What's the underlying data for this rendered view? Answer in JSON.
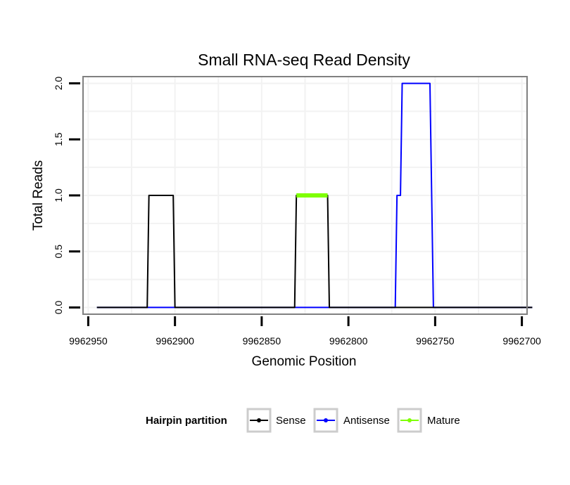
{
  "chart_data": {
    "type": "line",
    "title": "Small RNA-seq Read Density",
    "xlabel": "Genomic Position",
    "ylabel": "Total Reads",
    "xlim": [
      9962953,
      9962697
    ],
    "ylim": [
      -0.06,
      2.06
    ],
    "x_reversed": true,
    "x_ticks": [
      9962950,
      9962900,
      9962850,
      9962800,
      9962750,
      9962700
    ],
    "x_tick_labels": [
      "9962950",
      "9962900",
      "9962850",
      "9962800",
      "9962750",
      "9962700"
    ],
    "y_ticks": [
      0.0,
      0.5,
      1.0,
      1.5,
      2.0
    ],
    "y_tick_labels": [
      "0.0",
      "0.5",
      "1.0",
      "1.5",
      "2.0"
    ],
    "grid": true,
    "legend_title": "Hairpin partition",
    "legend_position": "bottom",
    "series": [
      {
        "name": "Sense",
        "color": "#000000",
        "x": [
          9962945,
          9962916,
          9962915,
          9962901,
          9962900,
          9962831,
          9962830,
          9962812,
          9962811,
          9962694
        ],
        "y": [
          0,
          0,
          1,
          1,
          0,
          0,
          1,
          1,
          0,
          0
        ]
      },
      {
        "name": "Antisense",
        "color": "#0000ff",
        "x": [
          9962945,
          9962773,
          9962772,
          9962770,
          9962769,
          9962753,
          9962751,
          9962694
        ],
        "y": [
          0,
          0,
          1,
          1,
          2,
          2,
          0,
          0
        ]
      },
      {
        "name": "Mature",
        "color": "#7fff00",
        "x": [
          9962830,
          9962812
        ],
        "y": [
          1,
          1
        ]
      }
    ]
  }
}
